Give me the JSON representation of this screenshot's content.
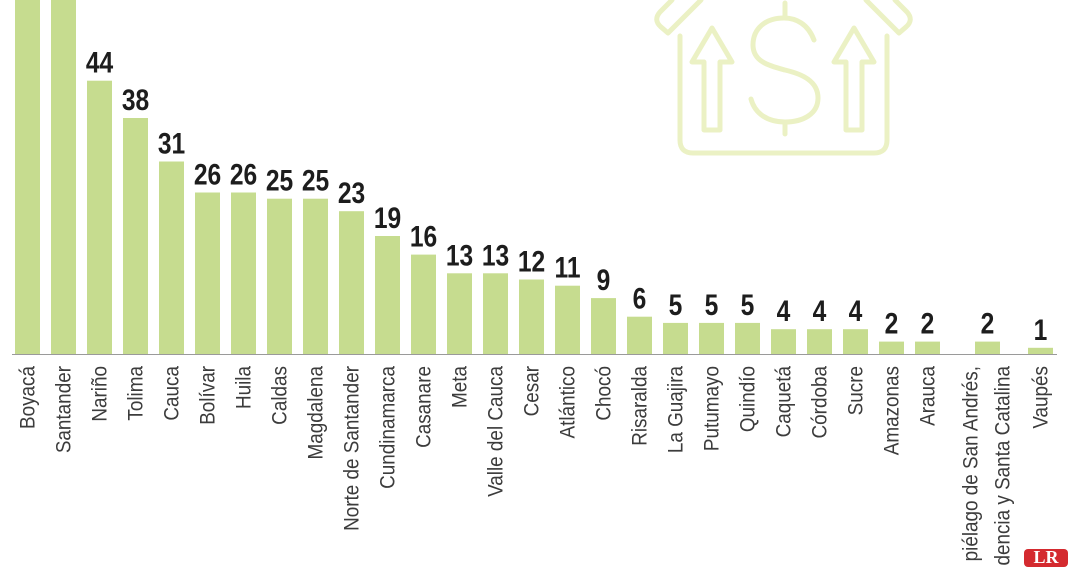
{
  "chart_data": {
    "type": "bar",
    "categories": [
      "Boyacá",
      "Santander",
      "Nariño",
      "Tolima",
      "Cauca",
      "Bolívar",
      "Huila",
      "Caldas",
      "Magdalena",
      "Norte de Santander",
      "Cundinamarca",
      "Casanare",
      "Meta",
      "Valle del Cauca",
      "Cesar",
      "Atlántico",
      "Chocó",
      "Risaralda",
      "La Guajira",
      "Putumayo",
      "Quindío",
      "Caquetá",
      "Córdoba",
      "Sucre",
      "Amazonas",
      "Arauca",
      "piélago de San Andrés,\ndencia y Santa Catalina",
      "Vaupés"
    ],
    "values": [
      null,
      null,
      44,
      38,
      31,
      26,
      26,
      25,
      25,
      23,
      19,
      16,
      13,
      13,
      12,
      11,
      9,
      6,
      5,
      5,
      5,
      4,
      4,
      4,
      2,
      2,
      2,
      1
    ],
    "ylim": [
      0,
      57
    ],
    "grid": false
  },
  "colors": {
    "background": "#ffffff",
    "bar": "#c6dc8f",
    "value_label": "#1d1d1d",
    "category_label": "#3c3c3c",
    "baseline": "#9a9a9a",
    "icon": "#ebf1c4",
    "logo": "#d42a2f",
    "logo_text": "#ffffff"
  },
  "decor": {
    "icon": "house-dollar-icon"
  },
  "logo": {
    "text": "LR"
  }
}
